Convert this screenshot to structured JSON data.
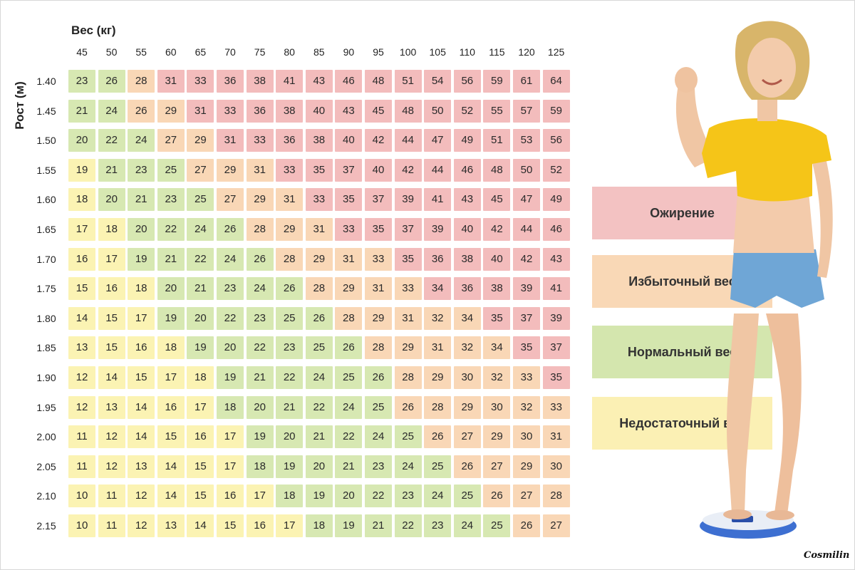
{
  "chart_data": {
    "type": "heatmap",
    "xlabel": "Вес (кг)",
    "ylabel": "Рост (м)",
    "x": [
      "45",
      "50",
      "55",
      "60",
      "65",
      "70",
      "75",
      "80",
      "85",
      "90",
      "95",
      "100",
      "105",
      "110",
      "115",
      "120",
      "125"
    ],
    "y": [
      "1.40",
      "1.45",
      "1.50",
      "1.55",
      "1.60",
      "1.65",
      "1.70",
      "1.75",
      "1.80",
      "1.85",
      "1.90",
      "1.95",
      "2.00",
      "2.05",
      "2.10",
      "2.15"
    ],
    "values": [
      [
        23,
        26,
        28,
        31,
        33,
        36,
        38,
        41,
        43,
        46,
        48,
        51,
        54,
        56,
        59,
        61,
        64
      ],
      [
        21,
        24,
        26,
        29,
        31,
        33,
        36,
        38,
        40,
        43,
        45,
        48,
        50,
        52,
        55,
        57,
        59
      ],
      [
        20,
        22,
        24,
        27,
        29,
        31,
        33,
        36,
        38,
        40,
        42,
        44,
        47,
        49,
        51,
        53,
        56
      ],
      [
        19,
        21,
        23,
        25,
        27,
        29,
        31,
        33,
        35,
        37,
        40,
        42,
        44,
        46,
        48,
        50,
        52
      ],
      [
        18,
        20,
        21,
        23,
        25,
        27,
        29,
        31,
        33,
        35,
        37,
        39,
        41,
        43,
        45,
        47,
        49
      ],
      [
        17,
        18,
        20,
        22,
        24,
        26,
        28,
        29,
        31,
        33,
        35,
        37,
        39,
        40,
        42,
        44,
        46
      ],
      [
        16,
        17,
        19,
        21,
        22,
        24,
        26,
        28,
        29,
        31,
        33,
        35,
        36,
        38,
        40,
        42,
        43
      ],
      [
        15,
        16,
        18,
        20,
        21,
        23,
        24,
        26,
        28,
        29,
        31,
        33,
        34,
        36,
        38,
        39,
        41
      ],
      [
        14,
        15,
        17,
        19,
        20,
        22,
        23,
        25,
        26,
        28,
        29,
        31,
        32,
        34,
        35,
        37,
        39
      ],
      [
        13,
        15,
        16,
        18,
        19,
        20,
        22,
        23,
        25,
        26,
        28,
        29,
        31,
        32,
        34,
        35,
        37
      ],
      [
        12,
        14,
        15,
        17,
        18,
        19,
        21,
        22,
        24,
        25,
        26,
        28,
        29,
        30,
        32,
        33,
        35
      ],
      [
        12,
        13,
        14,
        16,
        17,
        18,
        20,
        21,
        22,
        24,
        25,
        26,
        28,
        29,
        30,
        32,
        33
      ],
      [
        11,
        12,
        14,
        15,
        16,
        17,
        19,
        20,
        21,
        22,
        24,
        25,
        26,
        27,
        29,
        30,
        31
      ],
      [
        11,
        12,
        13,
        14,
        15,
        17,
        18,
        19,
        20,
        21,
        23,
        24,
        25,
        26,
        27,
        29,
        30
      ],
      [
        10,
        11,
        12,
        14,
        15,
        16,
        17,
        18,
        19,
        20,
        22,
        23,
        24,
        25,
        26,
        27,
        28
      ],
      [
        10,
        11,
        12,
        13,
        14,
        15,
        16,
        17,
        18,
        19,
        21,
        22,
        23,
        24,
        25,
        26,
        27
      ]
    ],
    "categories": [
      {
        "key": "b",
        "label": "Ожирение",
        "color": "#f3c2c2"
      },
      {
        "key": "o",
        "label": "Избыточный вес",
        "color": "#f9d8b6"
      },
      {
        "key": "n",
        "label": "Нормальный вес",
        "color": "#d4e6ae"
      },
      {
        "key": "u",
        "label": "Недостаточный вес",
        "color": "#fbf0b4"
      }
    ],
    "cell_categories": [
      "nnobbbbbbbbbbbbbb",
      "nnoobbbbbbbbbbbbb",
      "nnnoobbbbbbbbbbbb",
      "unnnooobbbbbbbbbb",
      "unnnnooobbbbbbbbb",
      "uunnnnooobbbbbbbb",
      "uunnnnnoooobbbbbb",
      "uuunnnnnoooobbbbb",
      "uuunnnnnnooooobbb",
      "uuuunnnnnnooooobb",
      "uuuuunnnnnnooooob",
      "uuuuunnnnnnoooooo",
      "uuuuuunnnnnnooooo",
      "uuuuuunnnnnnnoooo",
      "uuuuuuunnnnnnnooo",
      "uuuuuuuunnnnnnnoo"
    ]
  },
  "legend": {
    "obese": "Ожирение",
    "overweight": "Избыточный вес",
    "normal": "Нормальный вес",
    "underweight": "Недостаточный вес"
  },
  "watermark": "Cosmilin",
  "illustration": "woman-on-scale"
}
